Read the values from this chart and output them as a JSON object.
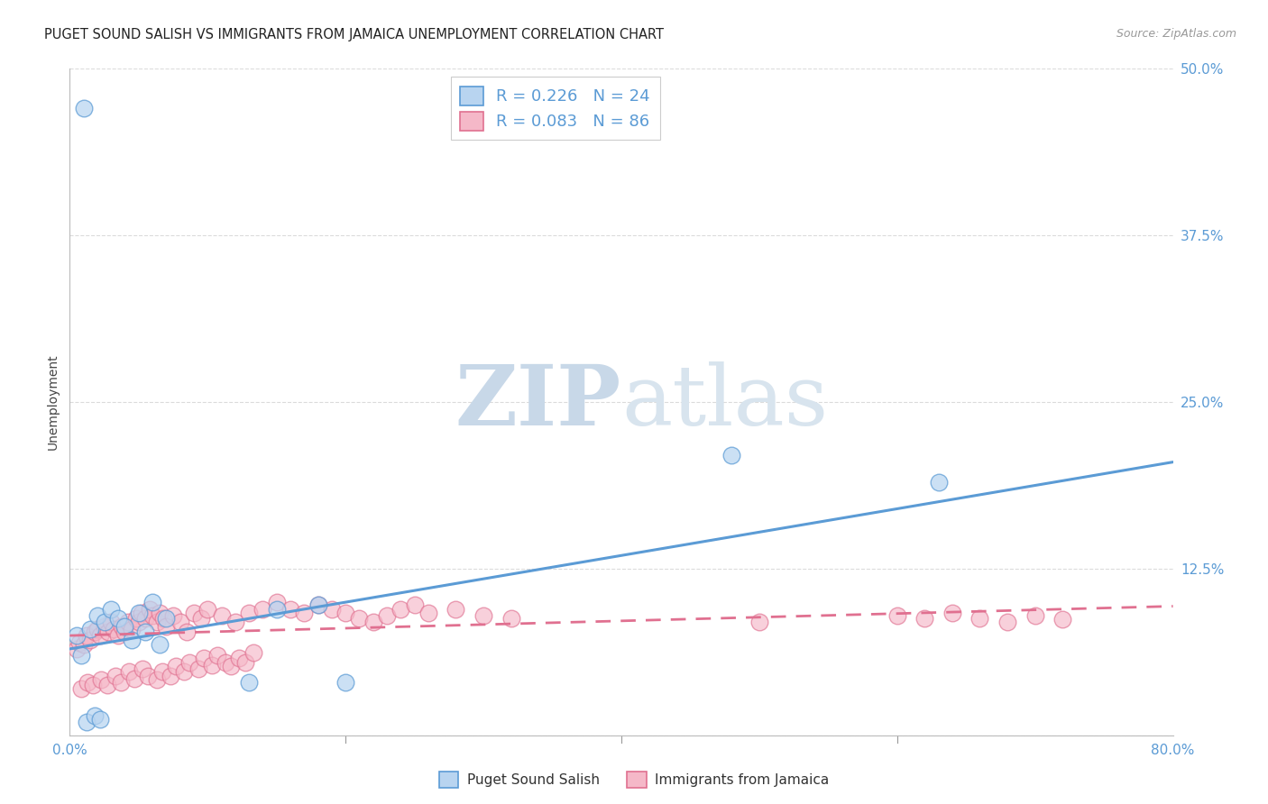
{
  "title": "PUGET SOUND SALISH VS IMMIGRANTS FROM JAMAICA UNEMPLOYMENT CORRELATION CHART",
  "source": "Source: ZipAtlas.com",
  "ylabel": "Unemployment",
  "xlim": [
    0.0,
    0.8
  ],
  "ylim": [
    0.0,
    0.5
  ],
  "yticks": [
    0.0,
    0.125,
    0.25,
    0.375,
    0.5
  ],
  "xticks": [
    0.0,
    0.2,
    0.4,
    0.6,
    0.8
  ],
  "legend_series": [
    {
      "label": "Puget Sound Salish",
      "R": 0.226,
      "N": 24,
      "color": "#b8d4f0",
      "line_color": "#5b9bd5"
    },
    {
      "label": "Immigrants from Jamaica",
      "R": 0.083,
      "N": 86,
      "color": "#f5b8c8",
      "line_color": "#e07090"
    }
  ],
  "watermark_zip": "ZIP",
  "watermark_atlas": "atlas",
  "watermark_color": "#dce6f0",
  "background_color": "#ffffff",
  "grid_color": "#cccccc",
  "tick_label_color": "#5b9bd5",
  "blue_x": [
    0.01,
    0.005,
    0.015,
    0.02,
    0.025,
    0.03,
    0.035,
    0.04,
    0.05,
    0.06,
    0.07,
    0.012,
    0.018,
    0.022,
    0.008,
    0.045,
    0.055,
    0.065,
    0.15,
    0.18,
    0.2,
    0.48,
    0.63,
    0.13
  ],
  "blue_y": [
    0.47,
    0.075,
    0.08,
    0.09,
    0.085,
    0.095,
    0.088,
    0.082,
    0.092,
    0.1,
    0.088,
    0.01,
    0.015,
    0.012,
    0.06,
    0.072,
    0.078,
    0.068,
    0.095,
    0.098,
    0.04,
    0.21,
    0.19,
    0.04
  ],
  "pink_x": [
    0.005,
    0.007,
    0.01,
    0.012,
    0.015,
    0.018,
    0.02,
    0.022,
    0.025,
    0.028,
    0.03,
    0.032,
    0.035,
    0.038,
    0.04,
    0.042,
    0.045,
    0.048,
    0.05,
    0.052,
    0.055,
    0.058,
    0.06,
    0.063,
    0.065,
    0.068,
    0.07,
    0.075,
    0.08,
    0.085,
    0.09,
    0.095,
    0.1,
    0.11,
    0.12,
    0.13,
    0.14,
    0.15,
    0.16,
    0.17,
    0.18,
    0.19,
    0.2,
    0.21,
    0.22,
    0.23,
    0.24,
    0.25,
    0.26,
    0.28,
    0.3,
    0.32,
    0.008,
    0.013,
    0.017,
    0.023,
    0.027,
    0.033,
    0.037,
    0.043,
    0.047,
    0.053,
    0.057,
    0.063,
    0.067,
    0.073,
    0.077,
    0.083,
    0.087,
    0.093,
    0.097,
    0.103,
    0.107,
    0.113,
    0.117,
    0.123,
    0.127,
    0.133,
    0.5,
    0.6,
    0.62,
    0.64,
    0.66,
    0.68,
    0.7,
    0.72
  ],
  "pink_y": [
    0.065,
    0.07,
    0.068,
    0.075,
    0.072,
    0.078,
    0.08,
    0.075,
    0.082,
    0.078,
    0.085,
    0.08,
    0.075,
    0.082,
    0.078,
    0.085,
    0.08,
    0.088,
    0.085,
    0.092,
    0.088,
    0.095,
    0.09,
    0.085,
    0.092,
    0.088,
    0.082,
    0.09,
    0.085,
    0.078,
    0.092,
    0.088,
    0.095,
    0.09,
    0.085,
    0.092,
    0.095,
    0.1,
    0.095,
    0.092,
    0.098,
    0.095,
    0.092,
    0.088,
    0.085,
    0.09,
    0.095,
    0.098,
    0.092,
    0.095,
    0.09,
    0.088,
    0.035,
    0.04,
    0.038,
    0.042,
    0.038,
    0.045,
    0.04,
    0.048,
    0.043,
    0.05,
    0.045,
    0.042,
    0.048,
    0.045,
    0.052,
    0.048,
    0.055,
    0.05,
    0.058,
    0.053,
    0.06,
    0.055,
    0.052,
    0.058,
    0.055,
    0.062,
    0.085,
    0.09,
    0.088,
    0.092,
    0.088,
    0.085,
    0.09,
    0.087
  ],
  "blue_line_x": [
    0.0,
    0.8
  ],
  "blue_line_y": [
    0.065,
    0.205
  ],
  "pink_line_x": [
    0.0,
    0.8
  ],
  "pink_line_y": [
    0.075,
    0.097
  ]
}
